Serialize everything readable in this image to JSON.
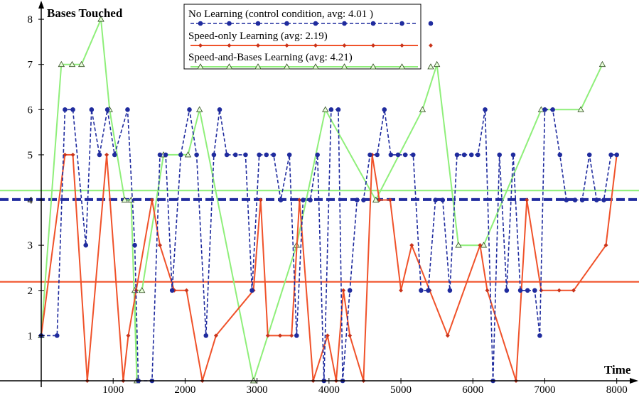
{
  "chart_data": {
    "type": "line",
    "ylabel": "Bases Touched",
    "xlabel": "Time",
    "xlim": [
      0,
      8250
    ],
    "ylim": [
      0,
      8.3
    ],
    "x_ticks": [
      1000,
      2000,
      3000,
      4000,
      5000,
      6000,
      7000,
      8000
    ],
    "y_ticks": [
      1,
      2,
      3,
      4,
      5,
      6,
      7,
      8
    ],
    "grid": false,
    "legend_position": "top-center",
    "series": [
      {
        "name": "No Learning (control condition, avg: 4.01 )",
        "color": "#1f2b9e",
        "style": "dashed",
        "marker": "circle",
        "average": 4.01,
        "points": [
          [
            0,
            1
          ],
          [
            220,
            1
          ],
          [
            330,
            6
          ],
          [
            440,
            6
          ],
          [
            620,
            3
          ],
          [
            700,
            6
          ],
          [
            810,
            5
          ],
          [
            920,
            6
          ],
          [
            1020,
            5
          ],
          [
            1200,
            6
          ],
          [
            1300,
            3
          ],
          [
            1350,
            0
          ],
          [
            1540,
            0
          ],
          [
            1650,
            5
          ],
          [
            1730,
            5
          ],
          [
            1820,
            2
          ],
          [
            1940,
            5
          ],
          [
            2060,
            6
          ],
          [
            2160,
            5
          ],
          [
            2290,
            1
          ],
          [
            2400,
            5
          ],
          [
            2480,
            6
          ],
          [
            2580,
            5
          ],
          [
            2700,
            5
          ],
          [
            2840,
            5
          ],
          [
            2930,
            2
          ],
          [
            3030,
            5
          ],
          [
            3130,
            5
          ],
          [
            3230,
            5
          ],
          [
            3330,
            4
          ],
          [
            3450,
            5
          ],
          [
            3550,
            1
          ],
          [
            3640,
            4
          ],
          [
            3740,
            4
          ],
          [
            3840,
            5
          ],
          [
            3930,
            0
          ],
          [
            4030,
            6
          ],
          [
            4130,
            6
          ],
          [
            4190,
            0
          ],
          [
            4290,
            2
          ],
          [
            4390,
            4
          ],
          [
            4480,
            4
          ],
          [
            4570,
            5
          ],
          [
            4670,
            5
          ],
          [
            4770,
            6
          ],
          [
            4860,
            5
          ],
          [
            4960,
            5
          ],
          [
            5060,
            5
          ],
          [
            5170,
            5
          ],
          [
            5280,
            2
          ],
          [
            5380,
            2
          ],
          [
            5480,
            4
          ],
          [
            5580,
            4
          ],
          [
            5680,
            2
          ],
          [
            5780,
            5
          ],
          [
            5880,
            5
          ],
          [
            5980,
            5
          ],
          [
            6070,
            5
          ],
          [
            6170,
            6
          ],
          [
            6280,
            0
          ],
          [
            6370,
            5
          ],
          [
            6470,
            2
          ],
          [
            6560,
            5
          ],
          [
            6660,
            2
          ],
          [
            6760,
            2
          ],
          [
            6860,
            2
          ],
          [
            6930,
            1
          ],
          [
            7000,
            6
          ],
          [
            7110,
            6
          ],
          [
            7210,
            5
          ],
          [
            7300,
            4
          ],
          [
            7420,
            4
          ],
          [
            7520,
            4
          ],
          [
            7620,
            5
          ],
          [
            7720,
            4
          ],
          [
            7820,
            4
          ],
          [
            7920,
            5
          ],
          [
            8000,
            5
          ]
        ]
      },
      {
        "name": "Speed-only Learning (avg: 2.19)",
        "color": "#f0522a",
        "style": "solid",
        "marker": "diamond",
        "average": 2.19,
        "points": [
          [
            0,
            1
          ],
          [
            330,
            5
          ],
          [
            440,
            5
          ],
          [
            640,
            0
          ],
          [
            910,
            5
          ],
          [
            1140,
            0
          ],
          [
            1210,
            1
          ],
          [
            1320,
            2
          ],
          [
            1540,
            4
          ],
          [
            1650,
            3
          ],
          [
            1850,
            2
          ],
          [
            2020,
            2
          ],
          [
            2240,
            0
          ],
          [
            2430,
            1
          ],
          [
            2950,
            2
          ],
          [
            3050,
            4
          ],
          [
            3150,
            1
          ],
          [
            3320,
            1
          ],
          [
            3480,
            1
          ],
          [
            3590,
            4
          ],
          [
            3780,
            0
          ],
          [
            3980,
            1
          ],
          [
            4100,
            0
          ],
          [
            4200,
            2
          ],
          [
            4290,
            1
          ],
          [
            4480,
            0
          ],
          [
            4600,
            5
          ],
          [
            4700,
            4
          ],
          [
            4850,
            4
          ],
          [
            5000,
            2
          ],
          [
            5150,
            3
          ],
          [
            5400,
            2
          ],
          [
            5650,
            1
          ],
          [
            6100,
            3
          ],
          [
            6200,
            2
          ],
          [
            6600,
            0
          ],
          [
            6750,
            4
          ],
          [
            6950,
            2
          ],
          [
            7200,
            2
          ],
          [
            7400,
            2
          ],
          [
            7850,
            3
          ],
          [
            8000,
            5
          ]
        ]
      },
      {
        "name": "Speed-and-Bases Learning (avg: 4.21)",
        "color": "#8fef7a",
        "style": "solid",
        "marker": "triangle",
        "average": 4.21,
        "points": [
          [
            0,
            1
          ],
          [
            280,
            7
          ],
          [
            430,
            7
          ],
          [
            560,
            7
          ],
          [
            830,
            8
          ],
          [
            950,
            6
          ],
          [
            1160,
            4
          ],
          [
            1250,
            4
          ],
          [
            1330,
            0
          ],
          [
            1300,
            2
          ],
          [
            1400,
            2
          ],
          [
            1700,
            5
          ],
          [
            2040,
            5
          ],
          [
            2200,
            6
          ],
          [
            2950,
            0
          ],
          [
            3550,
            3
          ],
          [
            3950,
            6
          ],
          [
            4650,
            4
          ],
          [
            5300,
            6
          ],
          [
            5500,
            7
          ],
          [
            5800,
            3
          ],
          [
            6150,
            3
          ],
          [
            6950,
            6
          ],
          [
            7500,
            6
          ],
          [
            7800,
            7
          ]
        ]
      }
    ]
  }
}
